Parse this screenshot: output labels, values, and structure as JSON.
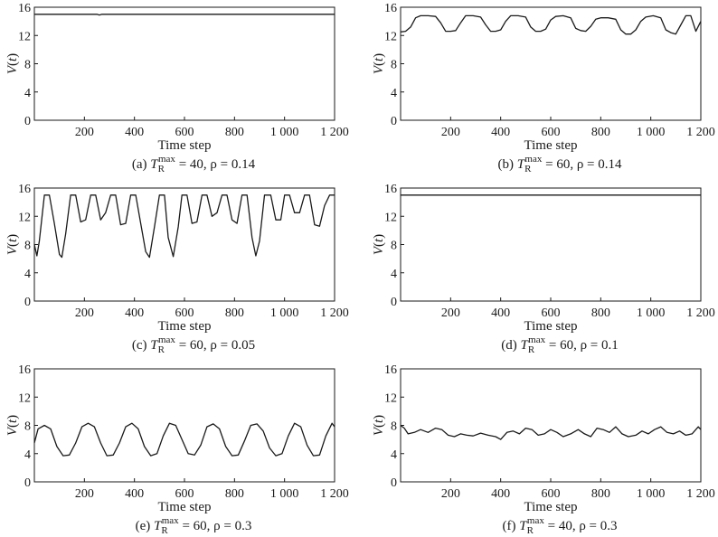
{
  "figure": {
    "ylabel": "V(t)",
    "xlabel": "Time step"
  },
  "chart_data": [
    {
      "type": "line",
      "caption": "(a) T_R^max = 40, ρ = 0.14",
      "caption_parts": {
        "label": "(a) ",
        "T": "T",
        "sub": "R",
        "sup": "max",
        "rest": " = 40, ρ = 0.14"
      },
      "xlabel": "Time step",
      "ylabel": "V(t)",
      "xlim": [
        0,
        1200
      ],
      "ylim": [
        0,
        16
      ],
      "xticks": [
        200,
        400,
        600,
        800,
        1000,
        1200
      ],
      "xtick_labels": [
        "200",
        "400",
        "600",
        "800",
        "1 000",
        "1 200"
      ],
      "yticks": [
        0,
        4,
        8,
        12,
        16
      ],
      "ytick_labels": [
        "0",
        "4",
        "8",
        "12",
        "16"
      ],
      "series": [
        {
          "x": [
            0,
            250,
            260,
            270,
            1200
          ],
          "y": [
            15,
            15,
            14.9,
            15,
            15
          ]
        }
      ]
    },
    {
      "type": "line",
      "caption": "(b) T_R^max = 60, ρ = 0.14",
      "caption_parts": {
        "label": "(b) ",
        "T": "T",
        "sub": "R",
        "sup": "max",
        "rest": " = 60, ρ = 0.14"
      },
      "xlabel": "Time step",
      "ylabel": "V(t)",
      "xlim": [
        0,
        1200
      ],
      "ylim": [
        0,
        16
      ],
      "xticks": [
        200,
        400,
        600,
        800,
        1000,
        1200
      ],
      "xtick_labels": [
        "200",
        "400",
        "600",
        "800",
        "1 000",
        "1 200"
      ],
      "yticks": [
        0,
        4,
        8,
        12,
        16
      ],
      "ytick_labels": [
        "0",
        "4",
        "8",
        "12",
        "16"
      ],
      "series": [
        {
          "x": [
            0,
            20,
            40,
            60,
            80,
            110,
            140,
            160,
            180,
            200,
            220,
            240,
            260,
            290,
            320,
            340,
            360,
            380,
            400,
            420,
            440,
            470,
            500,
            520,
            540,
            560,
            580,
            600,
            620,
            650,
            680,
            700,
            720,
            740,
            760,
            780,
            800,
            830,
            860,
            880,
            900,
            920,
            940,
            960,
            980,
            1010,
            1040,
            1060,
            1080,
            1100,
            1120,
            1140,
            1160,
            1180,
            1200
          ],
          "y": [
            12.5,
            12.6,
            13.2,
            14.5,
            14.8,
            14.8,
            14.7,
            13.8,
            12.6,
            12.6,
            12.7,
            13.8,
            14.8,
            14.8,
            14.6,
            13.5,
            12.6,
            12.6,
            12.8,
            14.0,
            14.8,
            14.8,
            14.6,
            13.2,
            12.6,
            12.6,
            12.9,
            14.2,
            14.7,
            14.8,
            14.5,
            13.0,
            12.7,
            12.6,
            13.3,
            14.3,
            14.5,
            14.5,
            14.3,
            12.8,
            12.2,
            12.2,
            12.8,
            14.0,
            14.6,
            14.8,
            14.5,
            12.8,
            12.4,
            12.2,
            13.5,
            14.8,
            14.8,
            12.6,
            14.0
          ]
        }
      ]
    },
    {
      "type": "line",
      "caption": "(c) T_R^max = 60, ρ = 0.05",
      "caption_parts": {
        "label": "(c) ",
        "T": "T",
        "sub": "R",
        "sup": "max",
        "rest": " = 60, ρ = 0.05"
      },
      "xlabel": "Time step",
      "ylabel": "V(t)",
      "xlim": [
        0,
        1200
      ],
      "ylim": [
        0,
        16
      ],
      "xticks": [
        200,
        400,
        600,
        800,
        1000,
        1200
      ],
      "xtick_labels": [
        "200",
        "400",
        "600",
        "800",
        "1 000",
        "1 200"
      ],
      "yticks": [
        0,
        4,
        8,
        12,
        16
      ],
      "ytick_labels": [
        "0",
        "4",
        "8",
        "12",
        "16"
      ],
      "series": [
        {
          "x": [
            0,
            10,
            20,
            40,
            60,
            80,
            100,
            110,
            125,
            145,
            165,
            185,
            205,
            225,
            245,
            265,
            285,
            305,
            325,
            345,
            365,
            385,
            405,
            425,
            445,
            460,
            480,
            500,
            520,
            535,
            555,
            575,
            590,
            610,
            630,
            650,
            670,
            690,
            710,
            730,
            750,
            770,
            790,
            810,
            830,
            850,
            870,
            885,
            900,
            920,
            945,
            965,
            985,
            1000,
            1020,
            1040,
            1060,
            1080,
            1100,
            1120,
            1140,
            1160,
            1180,
            1200
          ],
          "y": [
            8.0,
            6.4,
            8.5,
            15.0,
            15.0,
            11.0,
            6.6,
            6.2,
            9.5,
            15.0,
            15.0,
            11.2,
            11.5,
            15.0,
            15.0,
            11.5,
            12.5,
            15.0,
            15.0,
            10.8,
            11.0,
            15.0,
            15.0,
            11.0,
            7.0,
            6.2,
            10.5,
            15.0,
            15.0,
            9.0,
            6.3,
            10.5,
            15.0,
            15.0,
            11.0,
            11.2,
            15.0,
            15.0,
            12.0,
            12.5,
            15.0,
            15.0,
            11.5,
            11.0,
            15.0,
            15.0,
            9.0,
            6.4,
            8.5,
            15.0,
            15.0,
            11.5,
            11.5,
            15.0,
            15.0,
            12.5,
            12.5,
            15.0,
            15.0,
            10.8,
            10.6,
            13.5,
            15.0,
            15.0
          ]
        }
      ]
    },
    {
      "type": "line",
      "caption": "(d) T_R^max = 60, ρ = 0.1",
      "caption_parts": {
        "label": "(d) ",
        "T": "T",
        "sub": "R",
        "sup": "max",
        "rest": " = 60, ρ = 0.1"
      },
      "xlabel": "Time step",
      "ylabel": "V(t)",
      "xlim": [
        0,
        1200
      ],
      "ylim": [
        0,
        16
      ],
      "xticks": [
        200,
        400,
        600,
        800,
        1000,
        1200
      ],
      "xtick_labels": [
        "200",
        "400",
        "600",
        "800",
        "1 000",
        "1 200"
      ],
      "yticks": [
        0,
        4,
        8,
        12,
        16
      ],
      "ytick_labels": [
        "0",
        "4",
        "8",
        "12",
        "16"
      ],
      "series": [
        {
          "x": [
            0,
            1200
          ],
          "y": [
            15,
            15
          ]
        }
      ]
    },
    {
      "type": "line",
      "caption": "(e) T_R^max = 60, ρ = 0.3",
      "caption_parts": {
        "label": "(e) ",
        "T": "T",
        "sub": "R",
        "sup": "max",
        "rest": " = 60, ρ = 0.3"
      },
      "xlabel": "Time step",
      "ylabel": "V(t)",
      "xlim": [
        0,
        1200
      ],
      "ylim": [
        0,
        16
      ],
      "xticks": [
        200,
        400,
        600,
        800,
        1000,
        1200
      ],
      "xtick_labels": [
        "200",
        "400",
        "600",
        "800",
        "1 000",
        "1 200"
      ],
      "yticks": [
        0,
        4,
        8,
        12,
        16
      ],
      "ytick_labels": [
        "0",
        "4",
        "8",
        "12",
        "16"
      ],
      "series": [
        {
          "x": [
            0,
            15,
            40,
            65,
            90,
            115,
            140,
            165,
            190,
            215,
            240,
            265,
            290,
            315,
            340,
            365,
            390,
            415,
            440,
            465,
            490,
            515,
            540,
            565,
            590,
            615,
            640,
            665,
            690,
            715,
            740,
            765,
            790,
            815,
            840,
            865,
            890,
            915,
            940,
            965,
            990,
            1015,
            1040,
            1065,
            1090,
            1115,
            1140,
            1165,
            1190,
            1200
          ],
          "y": [
            5.5,
            7.5,
            8.0,
            7.5,
            5.0,
            3.7,
            3.8,
            5.5,
            7.8,
            8.3,
            7.8,
            5.5,
            3.7,
            3.8,
            5.5,
            7.8,
            8.3,
            7.5,
            5.0,
            3.7,
            4.0,
            6.5,
            8.3,
            8.0,
            6.0,
            4.0,
            3.8,
            5.2,
            7.8,
            8.2,
            7.5,
            5.0,
            3.7,
            3.8,
            5.8,
            8.0,
            8.2,
            7.2,
            4.8,
            3.7,
            4.0,
            6.5,
            8.3,
            7.8,
            5.2,
            3.7,
            3.8,
            6.5,
            8.3,
            7.8
          ]
        }
      ]
    },
    {
      "type": "line",
      "caption": "(f) T_R^max = 40, ρ = 0.3",
      "caption_parts": {
        "label": "(f) ",
        "T": "T",
        "sub": "R",
        "sup": "max",
        "rest": " = 40, ρ = 0.3"
      },
      "xlabel": "Time step",
      "ylabel": "V(t)",
      "xlim": [
        0,
        1200
      ],
      "ylim": [
        0,
        16
      ],
      "xticks": [
        200,
        400,
        600,
        800,
        1000,
        1200
      ],
      "xtick_labels": [
        "200",
        "400",
        "600",
        "800",
        "1 000",
        "1 200"
      ],
      "yticks": [
        0,
        4,
        8,
        12,
        16
      ],
      "ytick_labels": [
        "0",
        "4",
        "8",
        "12",
        "16"
      ],
      "series": [
        {
          "x": [
            0,
            15,
            30,
            55,
            80,
            110,
            140,
            165,
            190,
            215,
            240,
            265,
            290,
            320,
            350,
            380,
            400,
            425,
            450,
            475,
            500,
            525,
            550,
            575,
            600,
            625,
            650,
            680,
            710,
            735,
            760,
            785,
            810,
            835,
            860,
            885,
            910,
            940,
            965,
            990,
            1015,
            1040,
            1065,
            1090,
            1115,
            1140,
            1165,
            1190,
            1200
          ],
          "y": [
            8.0,
            7.6,
            6.8,
            7.0,
            7.4,
            7.0,
            7.6,
            7.4,
            6.6,
            6.4,
            6.8,
            6.6,
            6.5,
            6.9,
            6.6,
            6.4,
            6.0,
            7.0,
            7.2,
            6.8,
            7.6,
            7.4,
            6.6,
            6.8,
            7.4,
            7.0,
            6.4,
            6.8,
            7.4,
            6.8,
            6.4,
            7.6,
            7.4,
            7.0,
            7.8,
            6.8,
            6.4,
            6.6,
            7.2,
            6.8,
            7.4,
            7.8,
            7.0,
            6.8,
            7.2,
            6.6,
            6.8,
            7.8,
            7.4
          ]
        }
      ]
    }
  ]
}
